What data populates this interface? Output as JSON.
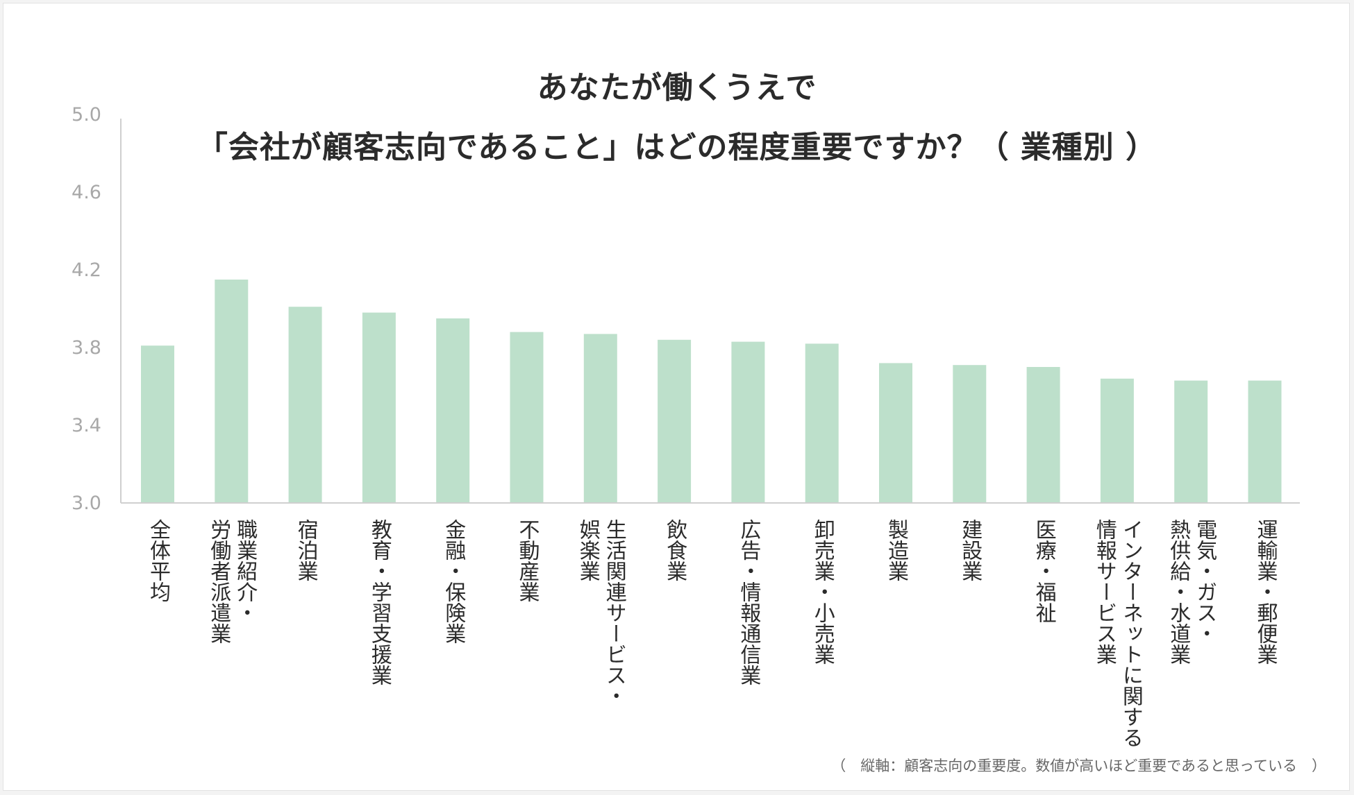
{
  "chart_data": {
    "type": "bar",
    "title": [
      "あなたが働くうえで",
      "「会社が顧客志向であること」はどの程度重要ですか？（ 業種別 ）"
    ],
    "categories": [
      "全体平均",
      "職業紹介・\n労働者派遣業",
      "宿泊業",
      "教育・学習支援業",
      "金融・保険業",
      "不動産業",
      "生活関連サービス・\n娯楽業",
      "飲食業",
      "広告・情報通信業",
      "卸売業・小売業",
      "製造業",
      "建設業",
      "医療・福祉",
      "インターネットに関する\n情報サービス業",
      "電気・ガス・\n熱供給・水道業",
      "運輸業・郵便業"
    ],
    "values": [
      3.81,
      4.15,
      4.01,
      3.98,
      3.95,
      3.88,
      3.87,
      3.84,
      3.83,
      3.82,
      3.72,
      3.71,
      3.7,
      3.64,
      3.63,
      3.63
    ],
    "ylim": [
      3.0,
      5.0
    ],
    "yticks": [
      "3.0",
      "3.4",
      "3.8",
      "4.2",
      "4.6",
      "5.0"
    ],
    "bar_color": "#bde0cb",
    "axis_color": "#cfcfcf",
    "grid": false,
    "legend": "none",
    "footnote": "（　縦軸：顧客志向の重要度。数値が高いほど重要であると思っている　）"
  }
}
